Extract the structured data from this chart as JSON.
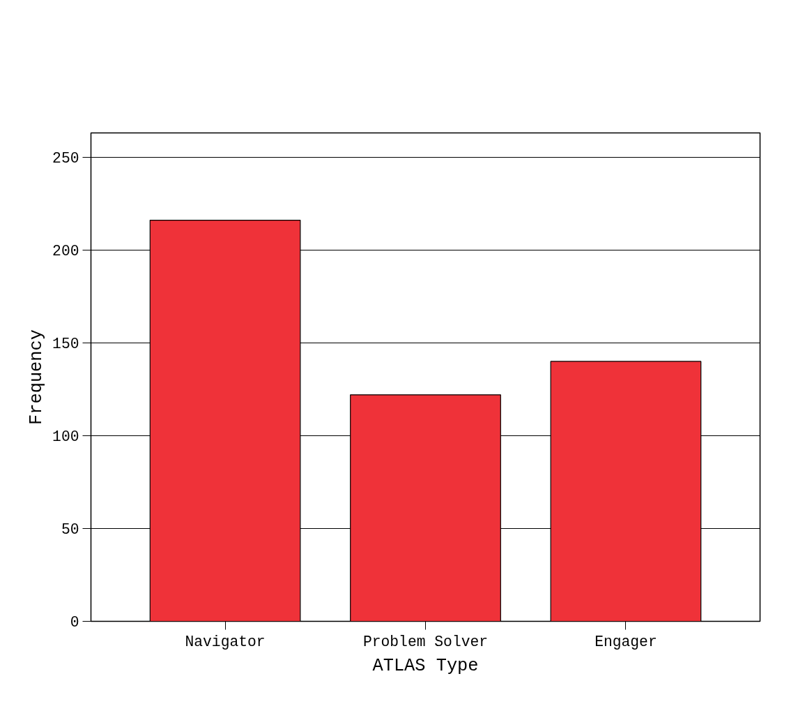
{
  "chart_data": {
    "type": "bar",
    "xlabel": "ATLAS Type",
    "ylabel": "Frequency",
    "categories": [
      "Navigator",
      "Problem Solver",
      "Engager"
    ],
    "values": [
      216,
      122,
      140
    ],
    "color": "#ef3239",
    "ylim": [
      0,
      263
    ],
    "yticks": [
      0,
      50,
      100,
      150,
      200,
      250
    ],
    "grid": "y"
  }
}
